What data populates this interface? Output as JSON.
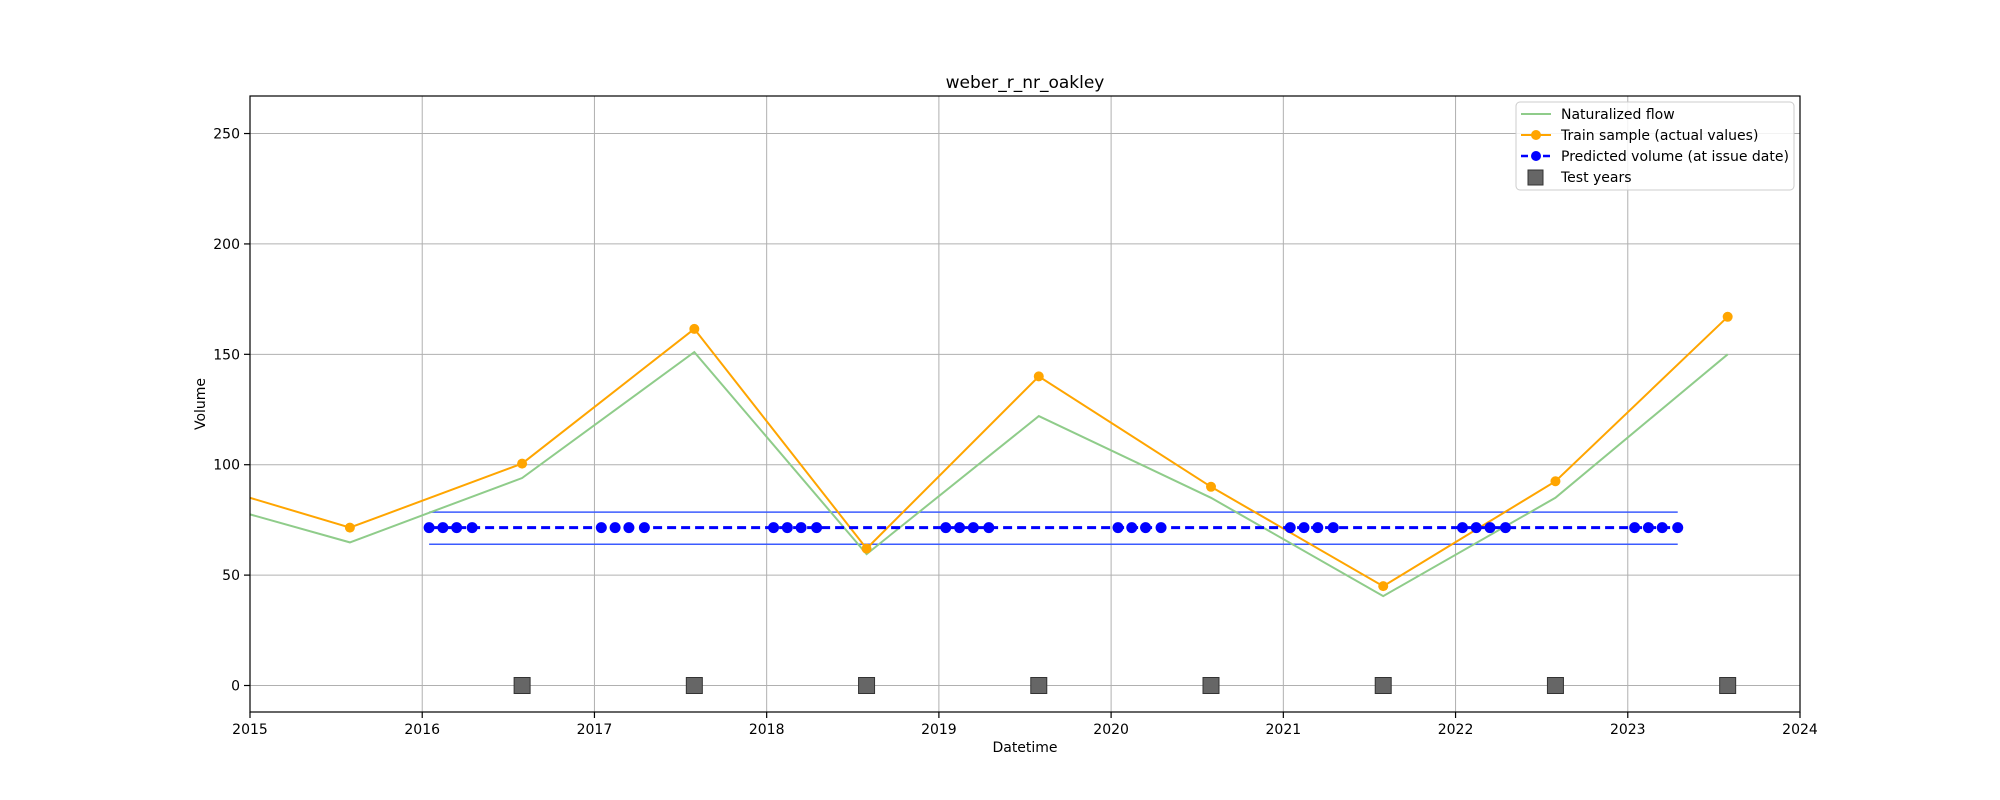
{
  "chart_data": {
    "type": "line",
    "title": "weber_r_nr_oakley",
    "xlabel": "Datetime",
    "ylabel": "Volume",
    "xlim": [
      2015.0,
      2024.0
    ],
    "ylim": [
      -12,
      267
    ],
    "x_ticks": [
      2015,
      2016,
      2017,
      2018,
      2019,
      2020,
      2021,
      2022,
      2023,
      2024
    ],
    "y_ticks": [
      0,
      50,
      100,
      150,
      200,
      250
    ],
    "grid": true,
    "legend_position": "top-right",
    "colors": {
      "naturalized": "#8fcc8a",
      "train": "#ffa500",
      "predicted": "#0000ff",
      "band": "#3b5bff",
      "test": "#666666"
    },
    "series": [
      {
        "name": "Naturalized flow",
        "kind": "line",
        "points": [
          [
            2015.0,
            77.5
          ],
          [
            2015.58,
            64.8
          ],
          [
            2016.58,
            94.0
          ],
          [
            2017.58,
            151.0
          ],
          [
            2018.58,
            59.5
          ],
          [
            2019.58,
            122.0
          ],
          [
            2020.58,
            85.0
          ],
          [
            2021.58,
            40.5
          ],
          [
            2022.58,
            85.0
          ],
          [
            2023.58,
            150.0
          ]
        ]
      },
      {
        "name": "Train sample (actual values)",
        "kind": "line-marker",
        "points": [
          [
            2015.0,
            85.0
          ],
          [
            2015.58,
            71.5
          ],
          [
            2016.58,
            100.5
          ],
          [
            2017.58,
            161.5
          ],
          [
            2018.58,
            62.0
          ],
          [
            2019.58,
            140.0
          ],
          [
            2020.58,
            90.0
          ],
          [
            2021.58,
            45.0
          ],
          [
            2022.58,
            92.5
          ],
          [
            2023.58,
            167.0
          ]
        ]
      },
      {
        "name": "Predicted volume (at issue date)",
        "kind": "dashed-marker",
        "points": [
          [
            2016.04,
            71.5
          ],
          [
            2016.12,
            71.5
          ],
          [
            2016.2,
            71.5
          ],
          [
            2016.29,
            71.5
          ],
          [
            2017.04,
            71.5
          ],
          [
            2017.12,
            71.5
          ],
          [
            2017.2,
            71.5
          ],
          [
            2017.29,
            71.5
          ],
          [
            2018.04,
            71.5
          ],
          [
            2018.12,
            71.5
          ],
          [
            2018.2,
            71.5
          ],
          [
            2018.29,
            71.5
          ],
          [
            2019.04,
            71.5
          ],
          [
            2019.12,
            71.5
          ],
          [
            2019.2,
            71.5
          ],
          [
            2019.29,
            71.5
          ],
          [
            2020.04,
            71.5
          ],
          [
            2020.12,
            71.5
          ],
          [
            2020.2,
            71.5
          ],
          [
            2020.29,
            71.5
          ],
          [
            2021.04,
            71.5
          ],
          [
            2021.12,
            71.5
          ],
          [
            2021.2,
            71.5
          ],
          [
            2021.29,
            71.5
          ],
          [
            2022.04,
            71.5
          ],
          [
            2022.12,
            71.5
          ],
          [
            2022.2,
            71.5
          ],
          [
            2022.29,
            71.5
          ],
          [
            2023.04,
            71.5
          ],
          [
            2023.12,
            71.5
          ],
          [
            2023.2,
            71.5
          ],
          [
            2023.29,
            71.5
          ]
        ]
      },
      {
        "name": "Test years",
        "kind": "square-marker",
        "points": [
          [
            2016.58,
            0
          ],
          [
            2017.58,
            0
          ],
          [
            2018.58,
            0
          ],
          [
            2019.58,
            0
          ],
          [
            2020.58,
            0
          ],
          [
            2021.58,
            0
          ],
          [
            2022.58,
            0
          ],
          [
            2023.58,
            0
          ]
        ]
      }
    ],
    "prediction_band": {
      "x_range": [
        2016.04,
        2023.29
      ],
      "upper": 78.5,
      "lower": 64.0
    }
  }
}
